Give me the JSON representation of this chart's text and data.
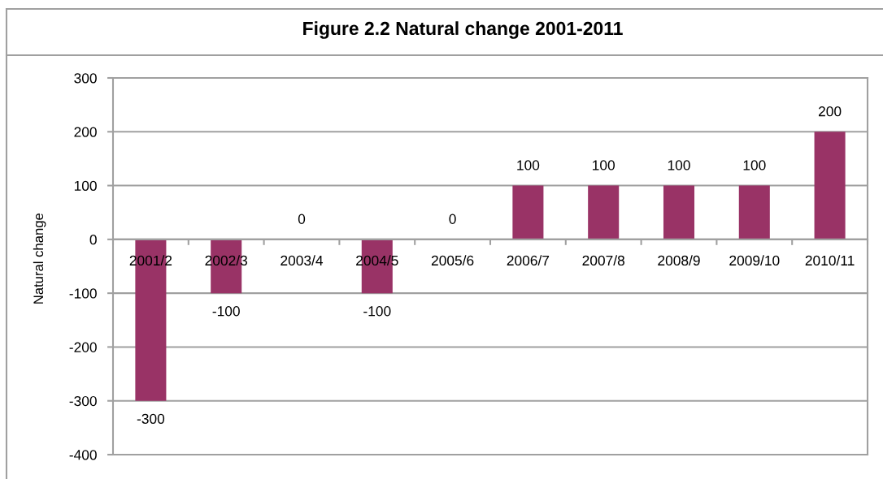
{
  "chart_data": {
    "type": "bar",
    "title": "Figure 2.2 Natural change 2001-2011",
    "ylabel": "Natural change",
    "categories": [
      "2001/2",
      "2002/3",
      "2003/4",
      "2004/5",
      "2005/6",
      "2006/7",
      "2007/8",
      "2008/9",
      "2009/10",
      "2010/11"
    ],
    "values": [
      -300,
      -100,
      0,
      -100,
      0,
      100,
      100,
      100,
      100,
      200
    ],
    "color": "#993366",
    "ylim": [
      -400,
      300
    ],
    "yticks": [
      -400,
      -300,
      -200,
      -100,
      0,
      100,
      200,
      300
    ],
    "grid": "y",
    "data_labels": true
  }
}
